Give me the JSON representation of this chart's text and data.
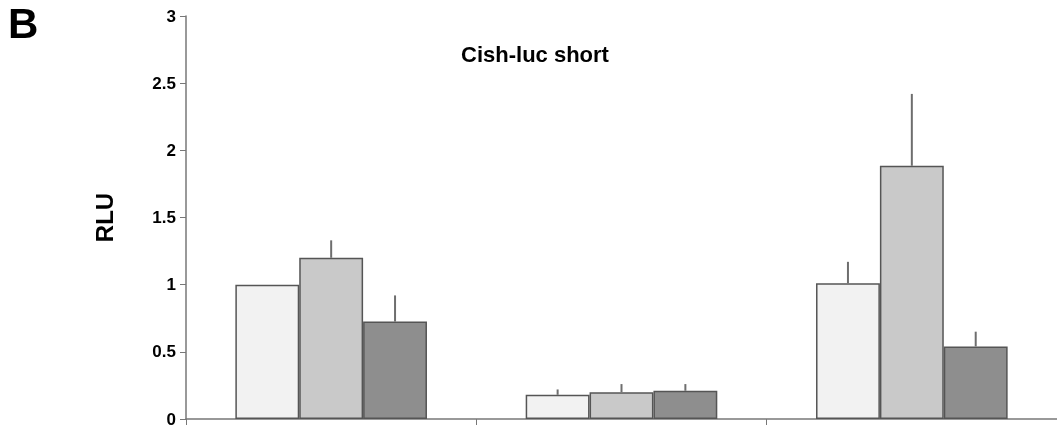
{
  "chart_data": {
    "type": "bar",
    "title": "Cish-luc short",
    "ylabel": "RLU",
    "annotations": [
      "B"
    ],
    "categories": [
      null,
      null,
      null
    ],
    "series": [
      {
        "color": "#f2f2f2",
        "values": [
          1.0,
          0.18,
          1.01
        ],
        "errors": [
          null,
          [
            0.18,
            0.22
          ],
          [
            1.01,
            1.17
          ]
        ]
      },
      {
        "color": "#c9c9c9",
        "values": [
          1.2,
          0.2,
          1.885
        ],
        "errors": [
          [
            1.2,
            1.33
          ],
          [
            0.2,
            0.26
          ],
          [
            1.885,
            2.42
          ]
        ]
      },
      {
        "color": "#8e8e8e",
        "values": [
          0.725,
          0.21,
          0.54
        ],
        "errors": [
          [
            0.725,
            0.92
          ],
          [
            0.21,
            0.26
          ],
          [
            0.54,
            0.65
          ]
        ]
      }
    ],
    "ylim": [
      0,
      3
    ],
    "yticks": [
      0,
      0.5,
      1,
      1.5,
      2,
      2.5,
      3
    ],
    "tick_labels": "y",
    "grid": false
  }
}
